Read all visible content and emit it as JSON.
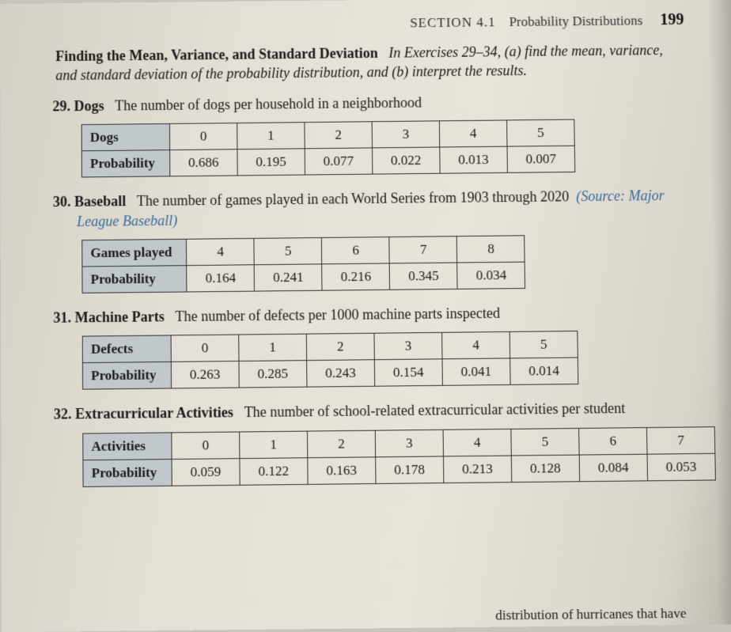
{
  "header": {
    "section_label": "SECTION 4.1",
    "section_title": "Probability Distributions",
    "page_number": "199"
  },
  "intro": {
    "lead": "Finding the Mean, Variance, and Standard Deviation",
    "in_ex": "In Exercises",
    "range": "29–34,",
    "instructions": "(a) find the mean, variance, and standard deviation of the probability distribution, and (b) interpret the results."
  },
  "ex29": {
    "number": "29.",
    "title": "Dogs",
    "text": "The number of dogs per household in a neighborhood",
    "row_label1": "Dogs",
    "row_label2": "Probability",
    "cols": [
      "0",
      "1",
      "2",
      "3",
      "4",
      "5"
    ],
    "probs": [
      "0.686",
      "0.195",
      "0.077",
      "0.022",
      "0.013",
      "0.007"
    ]
  },
  "ex30": {
    "number": "30.",
    "title": "Baseball",
    "text": "The number of games played in each World Series from 1903 through 2020",
    "source": "(Source: Major League Baseball)",
    "row_label1": "Games played",
    "row_label2": "Probability",
    "cols": [
      "4",
      "5",
      "6",
      "7",
      "8"
    ],
    "probs": [
      "0.164",
      "0.241",
      "0.216",
      "0.345",
      "0.034"
    ]
  },
  "ex31": {
    "number": "31.",
    "title": "Machine Parts",
    "text": "The number of defects per 1000 machine parts inspected",
    "row_label1": "Defects",
    "row_label2": "Probability",
    "cols": [
      "0",
      "1",
      "2",
      "3",
      "4",
      "5"
    ],
    "probs": [
      "0.263",
      "0.285",
      "0.243",
      "0.154",
      "0.041",
      "0.014"
    ]
  },
  "ex32": {
    "number": "32.",
    "title": "Extracurricular Activities",
    "text": "The number of school-related extracurricular activities per student",
    "row_label1": "Activities",
    "row_label2": "Probability",
    "cols": [
      "0",
      "1",
      "2",
      "3",
      "4",
      "5",
      "6",
      "7"
    ],
    "probs": [
      "0.059",
      "0.122",
      "0.163",
      "0.178",
      "0.213",
      "0.128",
      "0.084",
      "0.053"
    ]
  },
  "footer_fragment": "distribution of hurricanes that have",
  "style": {
    "header_bg": "#c0c8cc",
    "border_color": "#333333",
    "text_color": "#1a1a1a",
    "source_color": "#3a6a9a",
    "page_bg": "#e4e0d6",
    "font_family": "Times New Roman",
    "body_fontsize_pt": 13,
    "header_fontsize_pt": 13,
    "pagenum_fontsize_pt": 15
  }
}
